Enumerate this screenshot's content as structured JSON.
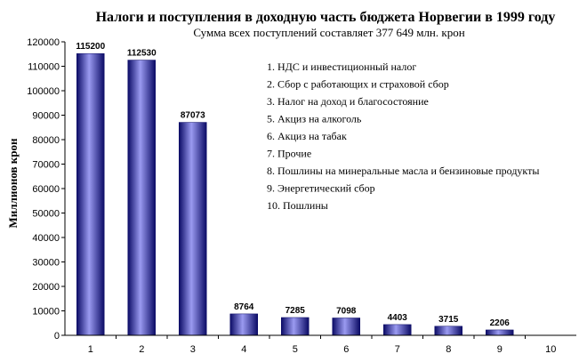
{
  "chart_data": {
    "type": "bar",
    "title": "Налоги и  поступления в доходную часть бюджета Норвегии в 1999 году",
    "subtitle": "Сумма всех  поступлений составляет 377 649  млн. крон",
    "ylabel": "Миллионов крон",
    "xlabel": "",
    "categories": [
      "1",
      "2",
      "3",
      "4",
      "5",
      "6",
      "7",
      "8",
      "9",
      "10"
    ],
    "values": [
      115200,
      112530,
      87073,
      8764,
      7285,
      7098,
      4403,
      3715,
      2206,
      0
    ],
    "data_labels": [
      "115200",
      "112530",
      "87073",
      "8764",
      "7285",
      "7098",
      "4403",
      "3715",
      "2206",
      ""
    ],
    "ylim": [
      0,
      120000
    ],
    "yticks": [
      "0",
      "10000",
      "20000",
      "30000",
      "40000",
      "50000",
      "60000",
      "70000",
      "80000",
      "90000",
      "100000",
      "110000",
      "120000"
    ],
    "grid": false,
    "legend_position": "top-right",
    "legend": [
      "1. НДС и инвестиционный налог",
      "2. Сбор с работающих и страховой сбор",
      "3. Налог на доход и благосостояние",
      "5. Акциз на алкоголь",
      "6. Акциз на табак",
      "7. Прочие",
      "8. Пошлины на минеральные масла и бензиновые продукты",
      "9. Энергетический сбор",
      "10. Пошлины"
    ],
    "colors": {
      "bar_dark": "#0b0b66",
      "bar_mid": "#3535c8",
      "bar_light": "#9a9af0",
      "axis": "#000000"
    }
  }
}
